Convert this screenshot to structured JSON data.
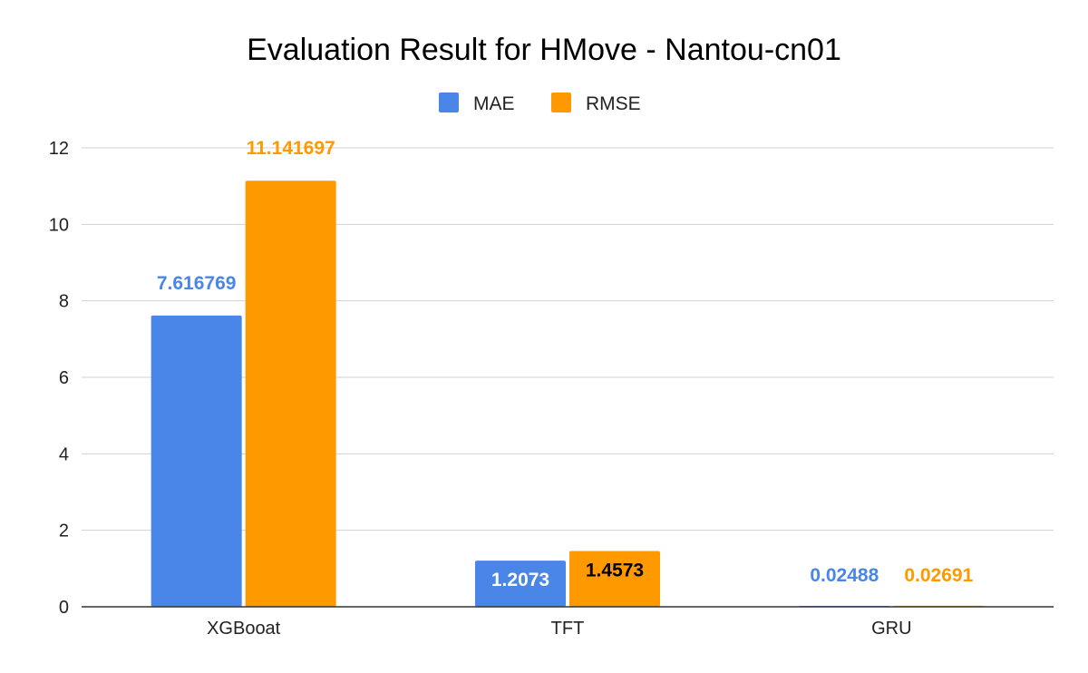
{
  "chart_data": {
    "type": "bar",
    "title": "Evaluation Result for HMove  - Nantou-cn01",
    "categories": [
      "XGBooat",
      "TFT",
      "GRU"
    ],
    "series": [
      {
        "name": "MAE",
        "color": "#4a86e8",
        "values": [
          7.616769,
          1.2073,
          0.02488
        ],
        "labels": [
          "7.616769",
          "1.2073",
          "0.02488"
        ]
      },
      {
        "name": "RMSE",
        "color": "#ff9900",
        "values": [
          11.141697,
          1.4573,
          0.02691
        ],
        "labels": [
          "11.141697",
          "1.4573",
          "0.02691"
        ]
      }
    ],
    "ylim": [
      0,
      12
    ],
    "yticks": [
      "0",
      "2",
      "4",
      "6",
      "8",
      "10",
      "12"
    ],
    "ytick_values": [
      0,
      2,
      4,
      6,
      8,
      10,
      12
    ],
    "grid": true,
    "legend_position": "top-center"
  }
}
